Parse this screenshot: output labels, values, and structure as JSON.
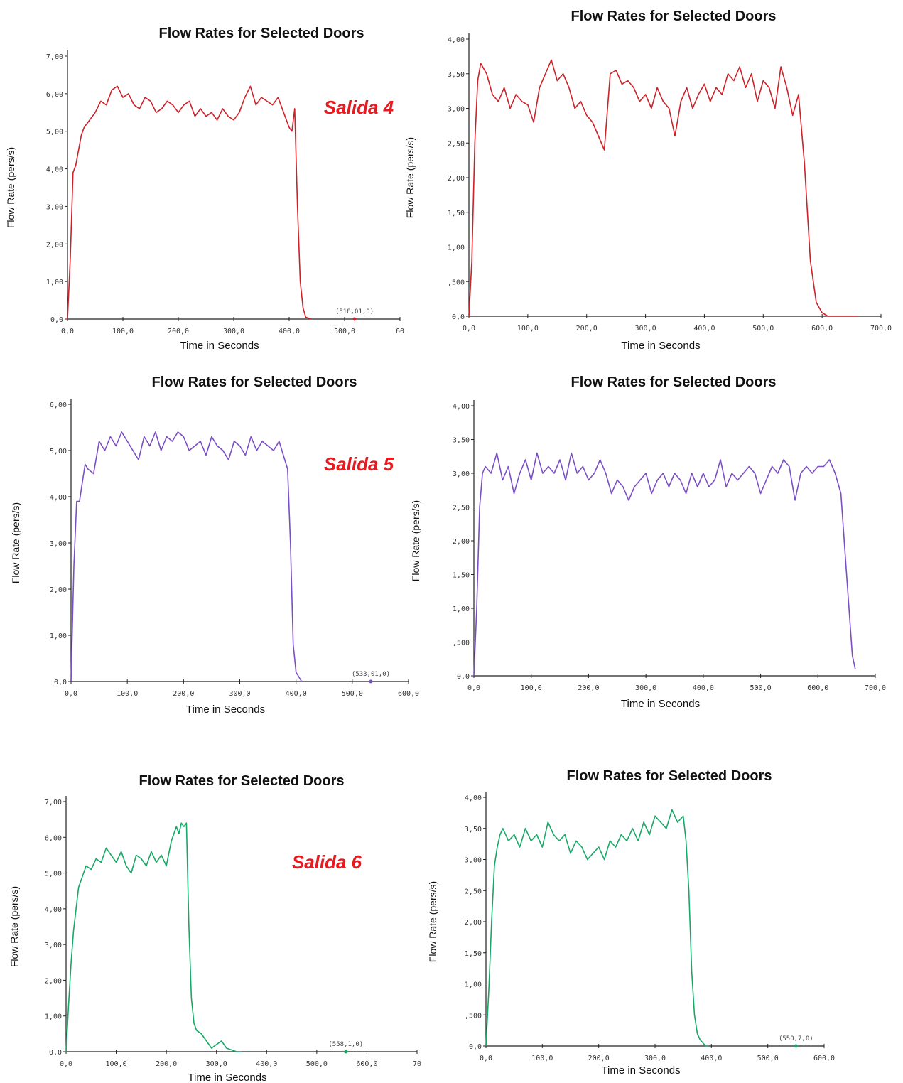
{
  "chart_data": [
    {
      "type": "line",
      "title": "Flow Rates for Selected Doors",
      "xlabel": "Time in Seconds",
      "ylabel": "Flow Rate (pers/s)",
      "annotation": "Salida 4",
      "color": "#cc2229",
      "xlim": [
        0,
        600
      ],
      "ylim": [
        0,
        7
      ],
      "x_ticks": [
        "0,0",
        "100,0",
        "200,0",
        "300,0",
        "400,0",
        "500,0",
        "60"
      ],
      "y_ticks": [
        "0,0",
        "1,00",
        "2,00",
        "3,00",
        "4,00",
        "5,00",
        "6,00",
        "7,00"
      ],
      "marker_label": "(518,01,0)",
      "marker": [
        518,
        0
      ],
      "series": [
        {
          "x": [
            0,
            5,
            10,
            15,
            20,
            25,
            30,
            40,
            50,
            60,
            70,
            80,
            90,
            100,
            110,
            120,
            130,
            140,
            150,
            160,
            170,
            180,
            190,
            200,
            210,
            220,
            230,
            240,
            250,
            260,
            270,
            280,
            290,
            300,
            310,
            320,
            330,
            340,
            350,
            360,
            370,
            380,
            390,
            400,
            405,
            410,
            415,
            420,
            425,
            430,
            440
          ],
          "values": [
            0,
            1.6,
            3.9,
            4.1,
            4.5,
            4.9,
            5.1,
            5.3,
            5.5,
            5.8,
            5.7,
            6.1,
            6.2,
            5.9,
            6.0,
            5.7,
            5.6,
            5.9,
            5.8,
            5.5,
            5.6,
            5.8,
            5.7,
            5.5,
            5.7,
            5.8,
            5.4,
            5.6,
            5.4,
            5.5,
            5.3,
            5.6,
            5.4,
            5.3,
            5.5,
            5.9,
            6.2,
            5.7,
            5.9,
            5.8,
            5.7,
            5.9,
            5.5,
            5.1,
            5.0,
            5.6,
            3.0,
            1.0,
            0.3,
            0.05,
            0
          ]
        }
      ]
    },
    {
      "type": "line",
      "title": "Flow Rates for Selected Doors",
      "xlabel": "Time in Seconds",
      "ylabel": "Flow Rate (pers/s)",
      "annotation": "",
      "color": "#cc2229",
      "xlim": [
        0,
        700
      ],
      "ylim": [
        0,
        4
      ],
      "x_ticks": [
        "0,0",
        "100,0",
        "200,0",
        "300,0",
        "400,0",
        "500,0",
        "600,0",
        "700,0"
      ],
      "y_ticks": [
        "0,0",
        ",500",
        "1,00",
        "1,50",
        "2,00",
        "2,50",
        "3,00",
        "3,50",
        "4,00"
      ],
      "marker_label": "",
      "series": [
        {
          "x": [
            0,
            5,
            10,
            15,
            20,
            30,
            40,
            50,
            60,
            70,
            80,
            90,
            100,
            110,
            120,
            130,
            140,
            150,
            160,
            170,
            180,
            190,
            200,
            210,
            220,
            230,
            240,
            250,
            260,
            270,
            280,
            290,
            300,
            310,
            320,
            330,
            340,
            350,
            360,
            370,
            380,
            390,
            400,
            410,
            420,
            430,
            440,
            450,
            460,
            470,
            480,
            490,
            500,
            510,
            520,
            530,
            540,
            550,
            560,
            570,
            580,
            590,
            600,
            610,
            620,
            630,
            640,
            650,
            660
          ],
          "values": [
            0,
            0.8,
            2.5,
            3.4,
            3.65,
            3.5,
            3.2,
            3.1,
            3.3,
            3.0,
            3.2,
            3.1,
            3.05,
            2.8,
            3.3,
            3.5,
            3.7,
            3.4,
            3.5,
            3.3,
            3.0,
            3.1,
            2.9,
            2.8,
            2.6,
            2.4,
            3.5,
            3.55,
            3.35,
            3.4,
            3.3,
            3.1,
            3.2,
            3.0,
            3.3,
            3.1,
            3.0,
            2.6,
            3.1,
            3.3,
            3.0,
            3.2,
            3.35,
            3.1,
            3.3,
            3.2,
            3.5,
            3.4,
            3.6,
            3.3,
            3.5,
            3.1,
            3.4,
            3.3,
            3.0,
            3.6,
            3.3,
            2.9,
            3.2,
            2.2,
            0.8,
            0.2,
            0.05,
            0,
            0,
            0,
            0,
            0,
            0
          ]
        }
      ]
    },
    {
      "type": "line",
      "title": "Flow Rates for Selected Doors",
      "xlabel": "Time in Seconds",
      "ylabel": "Flow Rate (pers/s)",
      "annotation": "Salida 5",
      "color": "#7b4fc4",
      "xlim": [
        0,
        600
      ],
      "ylim": [
        0,
        6
      ],
      "x_ticks": [
        "0,0",
        "100,0",
        "200,0",
        "300,0",
        "400,0",
        "500,0",
        "600,0"
      ],
      "y_ticks": [
        "0,0",
        "1,00",
        "2,00",
        "3,00",
        "4,00",
        "5,00",
        "6,00"
      ],
      "marker_label": "(533,01,0)",
      "marker": [
        533,
        0
      ],
      "series": [
        {
          "x": [
            0,
            5,
            10,
            15,
            20,
            25,
            30,
            40,
            50,
            60,
            70,
            80,
            90,
            100,
            110,
            120,
            130,
            140,
            150,
            160,
            170,
            180,
            190,
            200,
            210,
            220,
            230,
            240,
            250,
            260,
            270,
            280,
            290,
            300,
            310,
            320,
            330,
            340,
            350,
            360,
            370,
            380,
            385,
            390,
            395,
            400,
            410
          ],
          "values": [
            0,
            2.5,
            3.9,
            3.9,
            4.3,
            4.7,
            4.6,
            4.5,
            5.2,
            5.0,
            5.3,
            5.1,
            5.4,
            5.2,
            5.0,
            4.8,
            5.3,
            5.1,
            5.4,
            5.0,
            5.3,
            5.2,
            5.4,
            5.3,
            5.0,
            5.1,
            5.2,
            4.9,
            5.3,
            5.1,
            5.0,
            4.8,
            5.2,
            5.1,
            4.9,
            5.3,
            5.0,
            5.2,
            5.1,
            5.0,
            5.2,
            4.8,
            4.6,
            3.0,
            0.8,
            0.2,
            0
          ]
        }
      ]
    },
    {
      "type": "line",
      "title": "Flow Rates for Selected Doors",
      "xlabel": "Time in Seconds",
      "ylabel": "Flow Rate (pers/s)",
      "annotation": "",
      "color": "#7b4fc4",
      "xlim": [
        0,
        700
      ],
      "ylim": [
        0,
        4
      ],
      "x_ticks": [
        "0,0",
        "100,0",
        "200,0",
        "300,0",
        "400,0",
        "500,0",
        "600,0",
        "700,0"
      ],
      "y_ticks": [
        "0,0",
        ",500",
        "1,00",
        "1,50",
        "2,00",
        "2,50",
        "3,00",
        "3,50",
        "4,00"
      ],
      "marker_label": "",
      "series": [
        {
          "x": [
            0,
            5,
            10,
            15,
            20,
            30,
            40,
            50,
            60,
            70,
            80,
            90,
            100,
            110,
            120,
            130,
            140,
            150,
            160,
            170,
            180,
            190,
            200,
            210,
            220,
            230,
            240,
            250,
            260,
            270,
            280,
            290,
            300,
            310,
            320,
            330,
            340,
            350,
            360,
            370,
            380,
            390,
            400,
            410,
            420,
            430,
            440,
            450,
            460,
            470,
            480,
            490,
            500,
            510,
            520,
            530,
            540,
            550,
            560,
            570,
            580,
            590,
            600,
            610,
            620,
            630,
            640,
            650,
            660,
            665
          ],
          "values": [
            0,
            1.0,
            2.5,
            3.0,
            3.1,
            3.0,
            3.3,
            2.9,
            3.1,
            2.7,
            3.0,
            3.2,
            2.9,
            3.3,
            3.0,
            3.1,
            3.0,
            3.2,
            2.9,
            3.3,
            3.0,
            3.1,
            2.9,
            3.0,
            3.2,
            3.0,
            2.7,
            2.9,
            2.8,
            2.6,
            2.8,
            2.9,
            3.0,
            2.7,
            2.9,
            3.0,
            2.8,
            3.0,
            2.9,
            2.7,
            3.0,
            2.8,
            3.0,
            2.8,
            2.9,
            3.2,
            2.8,
            3.0,
            2.9,
            3.0,
            3.1,
            3.0,
            2.7,
            2.9,
            3.1,
            3.0,
            3.2,
            3.1,
            2.6,
            3.0,
            3.1,
            3.0,
            3.1,
            3.1,
            3.2,
            3.0,
            2.7,
            1.5,
            0.3,
            0.1
          ]
        }
      ]
    },
    {
      "type": "line",
      "title": "Flow Rates for Selected Doors",
      "xlabel": "Time in Seconds",
      "ylabel": "Flow Rate (pers/s)",
      "annotation": "Salida 6",
      "color": "#17a866",
      "xlim": [
        0,
        700
      ],
      "ylim": [
        0,
        7
      ],
      "x_ticks": [
        "0,0",
        "100,0",
        "200,0",
        "300,0",
        "400,0",
        "500,0",
        "600,0",
        "70"
      ],
      "y_ticks": [
        "0,0",
        "1,00",
        "2,00",
        "3,00",
        "4,00",
        "5,00",
        "6,00",
        "7,00"
      ],
      "marker_label": "(558,1,0)",
      "marker": [
        558,
        0
      ],
      "series": [
        {
          "x": [
            0,
            5,
            10,
            15,
            20,
            25,
            30,
            40,
            50,
            60,
            70,
            80,
            90,
            100,
            110,
            120,
            130,
            140,
            150,
            160,
            170,
            180,
            190,
            200,
            210,
            220,
            225,
            230,
            235,
            240,
            245,
            250,
            255,
            260,
            270,
            280,
            290,
            300,
            310,
            320,
            330,
            340,
            350
          ],
          "values": [
            0,
            1.3,
            2.5,
            3.4,
            4.0,
            4.6,
            4.8,
            5.2,
            5.1,
            5.4,
            5.3,
            5.7,
            5.5,
            5.3,
            5.6,
            5.2,
            5.0,
            5.5,
            5.4,
            5.2,
            5.6,
            5.3,
            5.5,
            5.2,
            5.9,
            6.3,
            6.1,
            6.4,
            6.3,
            6.4,
            3.5,
            1.5,
            0.8,
            0.6,
            0.5,
            0.3,
            0.1,
            0.2,
            0.3,
            0.1,
            0.05,
            0,
            0
          ]
        }
      ]
    },
    {
      "type": "line",
      "title": "Flow Rates for Selected Doors",
      "xlabel": "Time in Seconds",
      "ylabel": "Flow Rate (pers/s)",
      "annotation": "",
      "color": "#17a866",
      "xlim": [
        0,
        600
      ],
      "ylim": [
        0,
        4
      ],
      "x_ticks": [
        "0,0",
        "100,0",
        "200,0",
        "300,0",
        "400,0",
        "500,0",
        "600,0"
      ],
      "y_ticks": [
        "0,0",
        ",500",
        "1,00",
        "1,50",
        "2,00",
        "2,50",
        "3,00",
        "3,50",
        "4,00"
      ],
      "marker_label": "(550,7,0)",
      "marker": [
        550,
        0
      ],
      "series": [
        {
          "x": [
            0,
            5,
            10,
            15,
            20,
            25,
            30,
            40,
            50,
            60,
            70,
            80,
            90,
            100,
            110,
            120,
            130,
            140,
            150,
            160,
            170,
            180,
            190,
            200,
            210,
            220,
            230,
            240,
            250,
            260,
            270,
            280,
            290,
            300,
            310,
            320,
            330,
            340,
            350,
            355,
            360,
            365,
            370,
            375,
            380,
            385,
            390,
            395
          ],
          "values": [
            0,
            0.9,
            2.0,
            2.9,
            3.2,
            3.4,
            3.5,
            3.3,
            3.4,
            3.2,
            3.5,
            3.3,
            3.4,
            3.2,
            3.6,
            3.4,
            3.3,
            3.4,
            3.1,
            3.3,
            3.2,
            3.0,
            3.1,
            3.2,
            3.0,
            3.3,
            3.2,
            3.4,
            3.3,
            3.5,
            3.3,
            3.6,
            3.4,
            3.7,
            3.6,
            3.5,
            3.8,
            3.6,
            3.7,
            3.3,
            2.5,
            1.2,
            0.5,
            0.2,
            0.1,
            0.05,
            0,
            0
          ]
        }
      ]
    }
  ]
}
